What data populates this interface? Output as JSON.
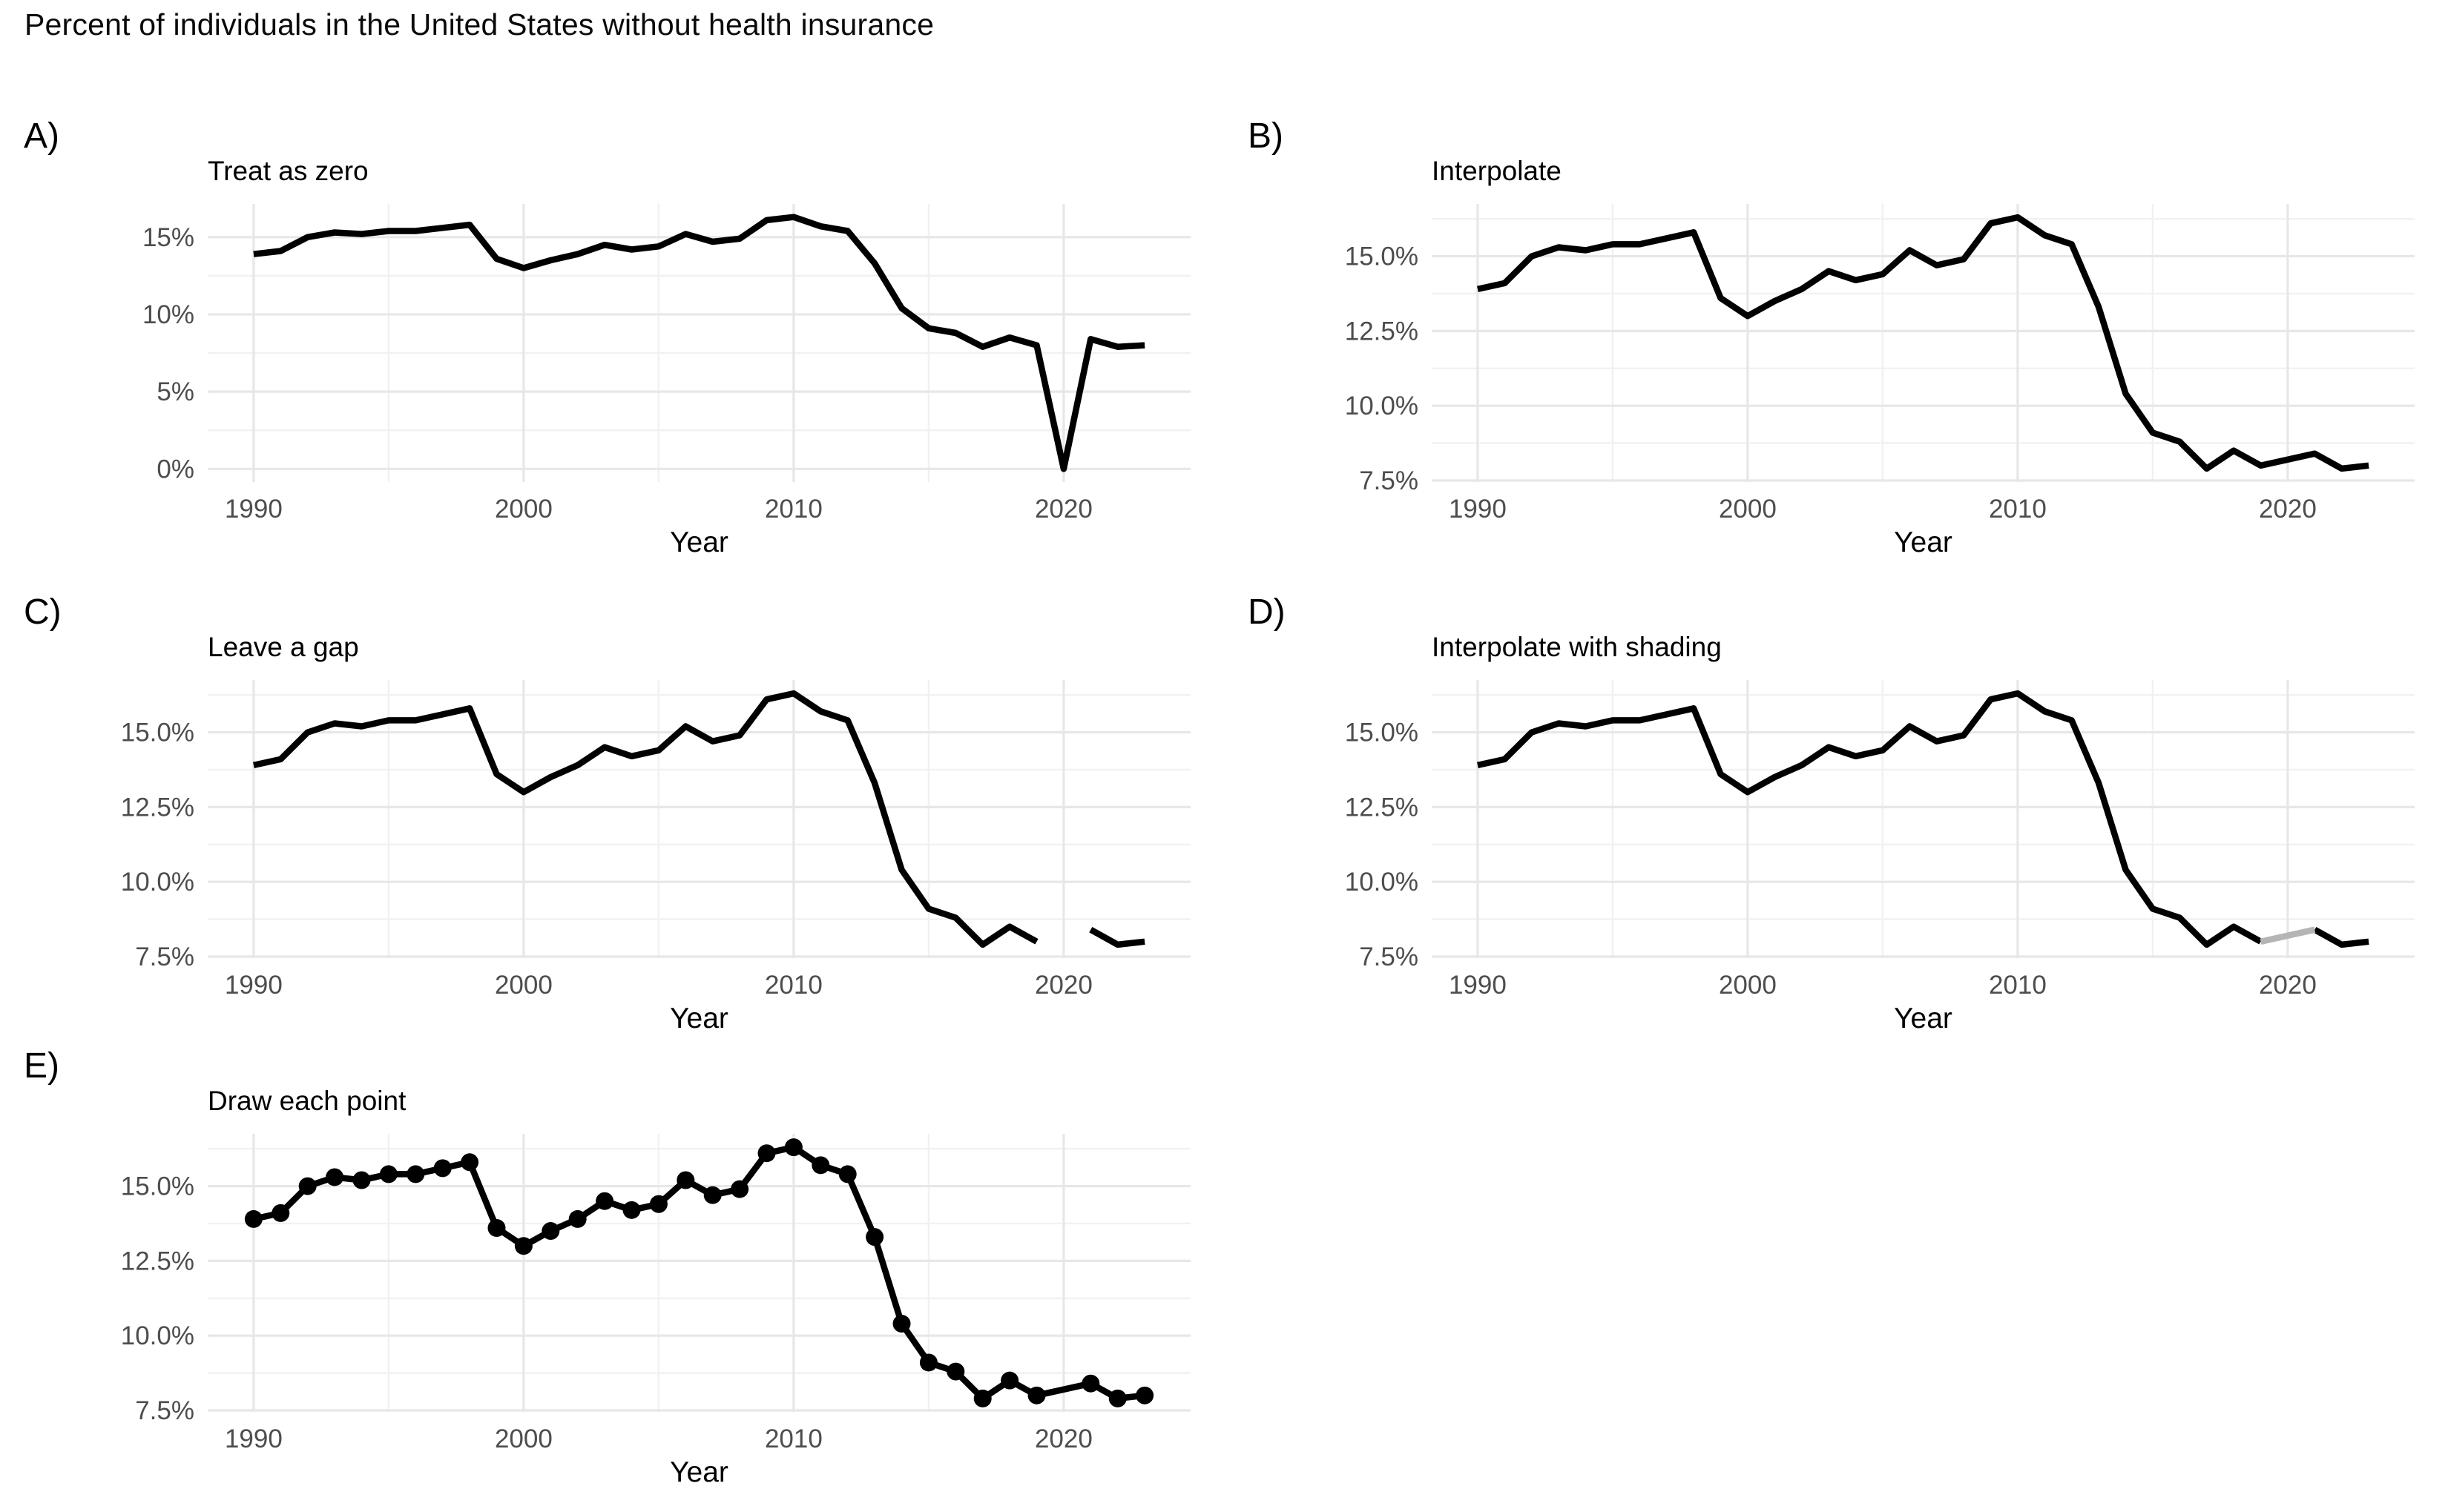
{
  "page_title": "Percent of individuals in the United States without health insurance",
  "x_axis_label": "Year",
  "colors": {
    "line": "#000000",
    "shaded_segment": "#b5b5b5",
    "grid_major": "#e7e7e7",
    "grid_minor": "#f1f1f1",
    "tick_text": "#4d4d4d",
    "background": "#ffffff"
  },
  "x_domain": [
    1988.3,
    2024.7
  ],
  "x_ticks": [
    {
      "v": 1990,
      "label": "1990"
    },
    {
      "v": 2000,
      "label": "2000"
    },
    {
      "v": 2010,
      "label": "2010"
    },
    {
      "v": 2020,
      "label": "2020"
    }
  ],
  "x_minor": [
    1995,
    2005,
    2015
  ],
  "panels": [
    {
      "tag": "A)",
      "title": "Treat as zero",
      "mode": "zero",
      "y_domain": [
        -0.85,
        17.15
      ],
      "y_ticks": [
        {
          "v": 0,
          "label": "0%"
        },
        {
          "v": 5,
          "label": "5%"
        },
        {
          "v": 10,
          "label": "10%"
        },
        {
          "v": 15,
          "label": "15%"
        }
      ],
      "y_minor": [
        2.5,
        7.5,
        12.5
      ]
    },
    {
      "tag": "B)",
      "title": "Interpolate",
      "mode": "interpolate",
      "y_domain": [
        7.45,
        16.75
      ],
      "y_ticks": [
        {
          "v": 7.5,
          "label": "7.5%"
        },
        {
          "v": 10,
          "label": "10.0%"
        },
        {
          "v": 12.5,
          "label": "12.5%"
        },
        {
          "v": 15,
          "label": "15.0%"
        }
      ],
      "y_minor": [
        8.75,
        11.25,
        13.75,
        16.25
      ]
    },
    {
      "tag": "C)",
      "title": "Leave a gap",
      "mode": "gap",
      "y_domain": [
        7.45,
        16.75
      ],
      "y_ticks": [
        {
          "v": 7.5,
          "label": "7.5%"
        },
        {
          "v": 10,
          "label": "10.0%"
        },
        {
          "v": 12.5,
          "label": "12.5%"
        },
        {
          "v": 15,
          "label": "15.0%"
        }
      ],
      "y_minor": [
        8.75,
        11.25,
        13.75,
        16.25
      ]
    },
    {
      "tag": "D)",
      "title": "Interpolate with shading",
      "mode": "shade",
      "y_domain": [
        7.45,
        16.75
      ],
      "y_ticks": [
        {
          "v": 7.5,
          "label": "7.5%"
        },
        {
          "v": 10,
          "label": "10.0%"
        },
        {
          "v": 12.5,
          "label": "12.5%"
        },
        {
          "v": 15,
          "label": "15.0%"
        }
      ],
      "y_minor": [
        8.75,
        11.25,
        13.75,
        16.25
      ]
    },
    {
      "tag": "E)",
      "title": "Draw each point",
      "mode": "points",
      "y_domain": [
        7.45,
        16.75
      ],
      "y_ticks": [
        {
          "v": 7.5,
          "label": "7.5%"
        },
        {
          "v": 10,
          "label": "10.0%"
        },
        {
          "v": 12.5,
          "label": "12.5%"
        },
        {
          "v": 15,
          "label": "15.0%"
        }
      ],
      "y_minor": [
        8.75,
        11.25,
        13.75,
        16.25
      ]
    }
  ],
  "chart_data": {
    "type": "line",
    "title": "Percent of individuals in the United States without health insurance",
    "xlabel": "Year",
    "ylabel": "",
    "legend": "none",
    "grid": "on",
    "missing_year": 2020,
    "panel_variants": [
      "Treat as zero",
      "Interpolate",
      "Leave a gap",
      "Interpolate with shading",
      "Draw each point"
    ],
    "x": [
      1990,
      1991,
      1992,
      1993,
      1994,
      1995,
      1996,
      1997,
      1998,
      1999,
      2000,
      2001,
      2002,
      2003,
      2004,
      2005,
      2006,
      2007,
      2008,
      2009,
      2010,
      2011,
      2012,
      2013,
      2014,
      2015,
      2016,
      2017,
      2018,
      2019,
      2020,
      2021,
      2022,
      2023
    ],
    "series": [
      {
        "name": "Percent without health insurance",
        "values": [
          13.9,
          14.1,
          15.0,
          15.3,
          15.2,
          15.4,
          15.4,
          15.6,
          15.8,
          13.6,
          13.0,
          13.5,
          13.9,
          14.5,
          14.2,
          14.4,
          15.2,
          14.7,
          14.9,
          16.1,
          16.3,
          15.7,
          15.4,
          13.3,
          10.4,
          9.1,
          8.8,
          7.9,
          8.5,
          8.0,
          null,
          8.4,
          7.9,
          8.0
        ]
      }
    ],
    "x_tick_labels": [
      "1990",
      "2000",
      "2010",
      "2020"
    ],
    "ylim_panel_A": [
      0,
      17
    ],
    "ylim_panels_BCDE": [
      7.5,
      16.5
    ]
  }
}
